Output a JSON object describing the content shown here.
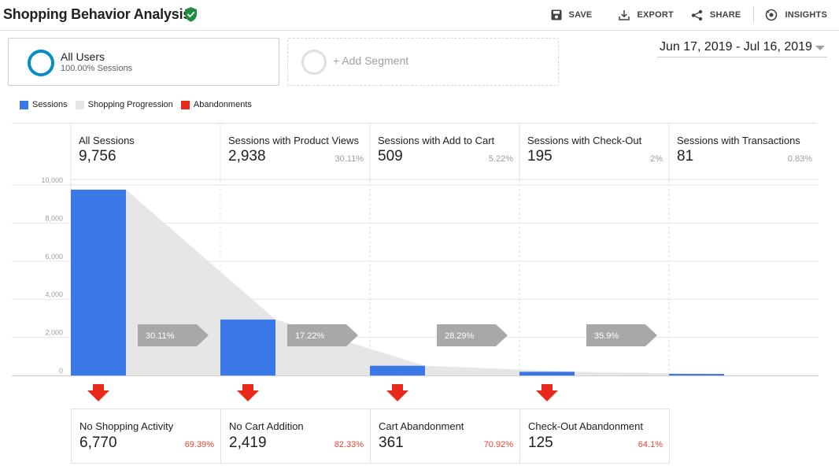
{
  "header": {
    "title": "Shopping Behavior Analysis",
    "actions": [
      {
        "icon": "save-icon",
        "label": "SAVE"
      },
      {
        "icon": "export-icon",
        "label": "EXPORT"
      },
      {
        "icon": "share-icon",
        "label": "SHARE"
      },
      {
        "icon": "insights-icon",
        "label": "INSIGHTS"
      }
    ]
  },
  "segments": {
    "primary": {
      "name": "All Users",
      "sub": "100.00% Sessions"
    },
    "add_label": "+ Add Segment"
  },
  "date_range": "Jun 17, 2019 - Jul 16, 2019",
  "legend": [
    {
      "label": "Sessions",
      "color": "#3b78e7"
    },
    {
      "label": "Shopping Progression",
      "color": "#e6e6e6"
    },
    {
      "label": "Abandonments",
      "color": "#e8291c"
    }
  ],
  "steps": [
    {
      "label": "All Sessions",
      "value": "9,756",
      "pct": ""
    },
    {
      "label": "Sessions with Product Views",
      "value": "2,938",
      "pct": "30.11%"
    },
    {
      "label": "Sessions with Add to Cart",
      "value": "509",
      "pct": "5.22%"
    },
    {
      "label": "Sessions with Check-Out",
      "value": "195",
      "pct": "2%"
    },
    {
      "label": "Sessions with Transactions",
      "value": "81",
      "pct": "0.83%"
    }
  ],
  "progressions": [
    "30.11%",
    "17.22%",
    "28.29%",
    "35.9%"
  ],
  "abandonments": [
    {
      "label": "No Shopping Activity",
      "value": "6,770",
      "pct": "69.39%"
    },
    {
      "label": "No Cart Addition",
      "value": "2,419",
      "pct": "82.33%"
    },
    {
      "label": "Cart Abandonment",
      "value": "361",
      "pct": "70.92%"
    },
    {
      "label": "Check-Out Abandonment",
      "value": "125",
      "pct": "64.1%"
    }
  ],
  "chart_data": {
    "type": "bar",
    "categories": [
      "All Sessions",
      "Sessions with Product Views",
      "Sessions with Add to Cart",
      "Sessions with Check-Out",
      "Sessions with Transactions"
    ],
    "values": [
      9756,
      2938,
      509,
      195,
      81
    ],
    "ylim": [
      0,
      10000
    ],
    "yticks": [
      "10,000",
      "8,000",
      "6,000",
      "4,000",
      "2,000",
      "0"
    ],
    "grid": true,
    "colors": {
      "bar": "#3b78e7",
      "progression": "#e6e6e6",
      "chevron": "#a8a8a8",
      "abandon": "#e8291c",
      "abandon_pct": "#ea4335"
    }
  }
}
